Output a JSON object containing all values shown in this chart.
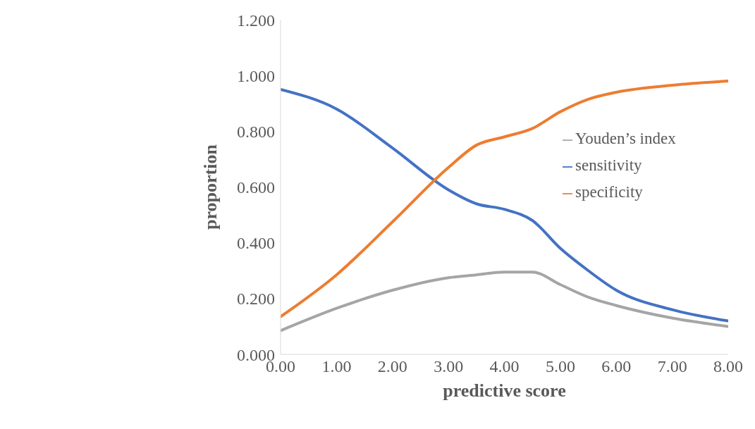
{
  "chart_data": {
    "type": "line",
    "xlabel": "predictive score",
    "ylabel": "proportion",
    "x": [
      0,
      1,
      2,
      3,
      3.5,
      4,
      4.5,
      5,
      5.5,
      6,
      7,
      8
    ],
    "series": [
      {
        "name": "sensitivity",
        "color": "#4472c4",
        "values": [
          0.95,
          0.88,
          0.74,
          0.59,
          0.54,
          0.52,
          0.48,
          0.38,
          0.3,
          0.23,
          0.16,
          0.12
        ]
      },
      {
        "name": "specificity",
        "color": "#ed7d31",
        "values": [
          0.135,
          0.285,
          0.475,
          0.67,
          0.75,
          0.78,
          0.81,
          0.87,
          0.915,
          0.94,
          0.965,
          0.98
        ]
      },
      {
        "name": "Youden’s index",
        "color": "#a5a5a5",
        "values": [
          0.085,
          0.165,
          0.23,
          0.275,
          0.285,
          0.295,
          0.295,
          0.25,
          0.205,
          0.175,
          0.13,
          0.1
        ]
      }
    ],
    "xlim": [
      0,
      8
    ],
    "xticks": [
      {
        "value": 0,
        "label": "0.00"
      },
      {
        "value": 1,
        "label": "1.00"
      },
      {
        "value": 2,
        "label": "2.00"
      },
      {
        "value": 3,
        "label": "3.00"
      },
      {
        "value": 4,
        "label": "4.00"
      },
      {
        "value": 5,
        "label": "5.00"
      },
      {
        "value": 6,
        "label": "6.00"
      },
      {
        "value": 7,
        "label": "7.00"
      },
      {
        "value": 8,
        "label": "8.00"
      }
    ],
    "ylim": [
      0,
      1.2
    ],
    "yticks": [
      {
        "value": 0,
        "label": "0.000"
      },
      {
        "value": 0.2,
        "label": "0.200"
      },
      {
        "value": 0.4,
        "label": "0.400"
      },
      {
        "value": 0.6,
        "label": "0.600"
      },
      {
        "value": 0.8,
        "label": "0.800"
      },
      {
        "value": 1,
        "label": "1.000"
      },
      {
        "value": 1.2,
        "label": "1.200"
      }
    ],
    "grid": false,
    "legend": "right",
    "marker": "none",
    "line_style": "solid"
  }
}
